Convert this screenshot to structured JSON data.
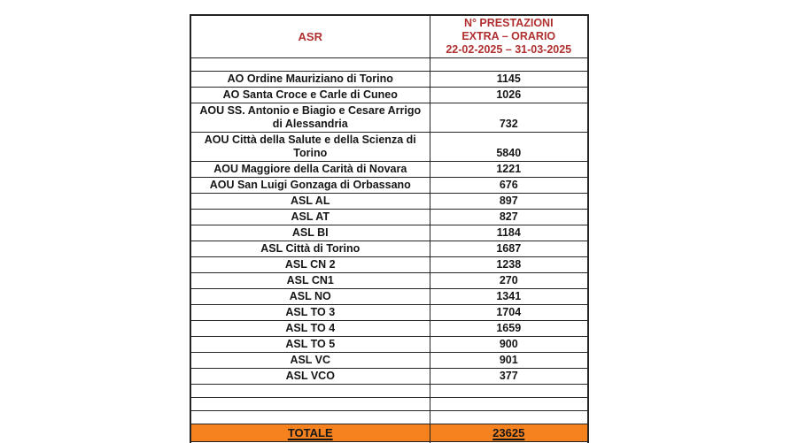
{
  "table": {
    "header": {
      "asr_label": "ASR",
      "value_label": "N° PRESTAZIONI\nEXTRA – ORARIO\n22-02-2025 – 31-03-2025"
    },
    "rows": [
      {
        "type": "spacer"
      },
      {
        "type": "data",
        "asr": "AO Ordine Mauriziano di Torino",
        "value": "1145"
      },
      {
        "type": "data",
        "asr": "AO Santa Croce e Carle di Cuneo",
        "value": "1026"
      },
      {
        "type": "data",
        "asr": "AOU SS. Antonio e Biagio e Cesare Arrigo di Alessandria",
        "value": "732"
      },
      {
        "type": "data",
        "asr": "AOU Città della Salute e della Scienza di Torino",
        "value": "5840"
      },
      {
        "type": "data",
        "asr": "AOU Maggiore della Carità di Novara",
        "value": "1221"
      },
      {
        "type": "data",
        "asr": "AOU San Luigi Gonzaga di Orbassano",
        "value": "676"
      },
      {
        "type": "data",
        "asr": "ASL AL",
        "value": "897"
      },
      {
        "type": "data",
        "asr": "ASL AT",
        "value": "827"
      },
      {
        "type": "data",
        "asr": "ASL BI",
        "value": "1184"
      },
      {
        "type": "data",
        "asr": "ASL Città di Torino",
        "value": "1687"
      },
      {
        "type": "data",
        "asr": "ASL CN 2",
        "value": "1238"
      },
      {
        "type": "data",
        "asr": "ASL CN1",
        "value": "270"
      },
      {
        "type": "data",
        "asr": "ASL NO",
        "value": "1341"
      },
      {
        "type": "data",
        "asr": "ASL TO 3",
        "value": "1704"
      },
      {
        "type": "data",
        "asr": "ASL TO 4",
        "value": "1659"
      },
      {
        "type": "data",
        "asr": "ASL TO 5",
        "value": "900"
      },
      {
        "type": "data",
        "asr": "ASL VC",
        "value": "901"
      },
      {
        "type": "data",
        "asr": "ASL VCO",
        "value": "377"
      },
      {
        "type": "spacer"
      },
      {
        "type": "spacer"
      },
      {
        "type": "spacer"
      },
      {
        "type": "total",
        "label": "TOTALE",
        "value": "23625"
      },
      {
        "type": "spacer"
      }
    ],
    "colors": {
      "header_text": "#B03030",
      "total_background": "#F6821F",
      "border": "#242424",
      "body_text": "#161616"
    }
  }
}
